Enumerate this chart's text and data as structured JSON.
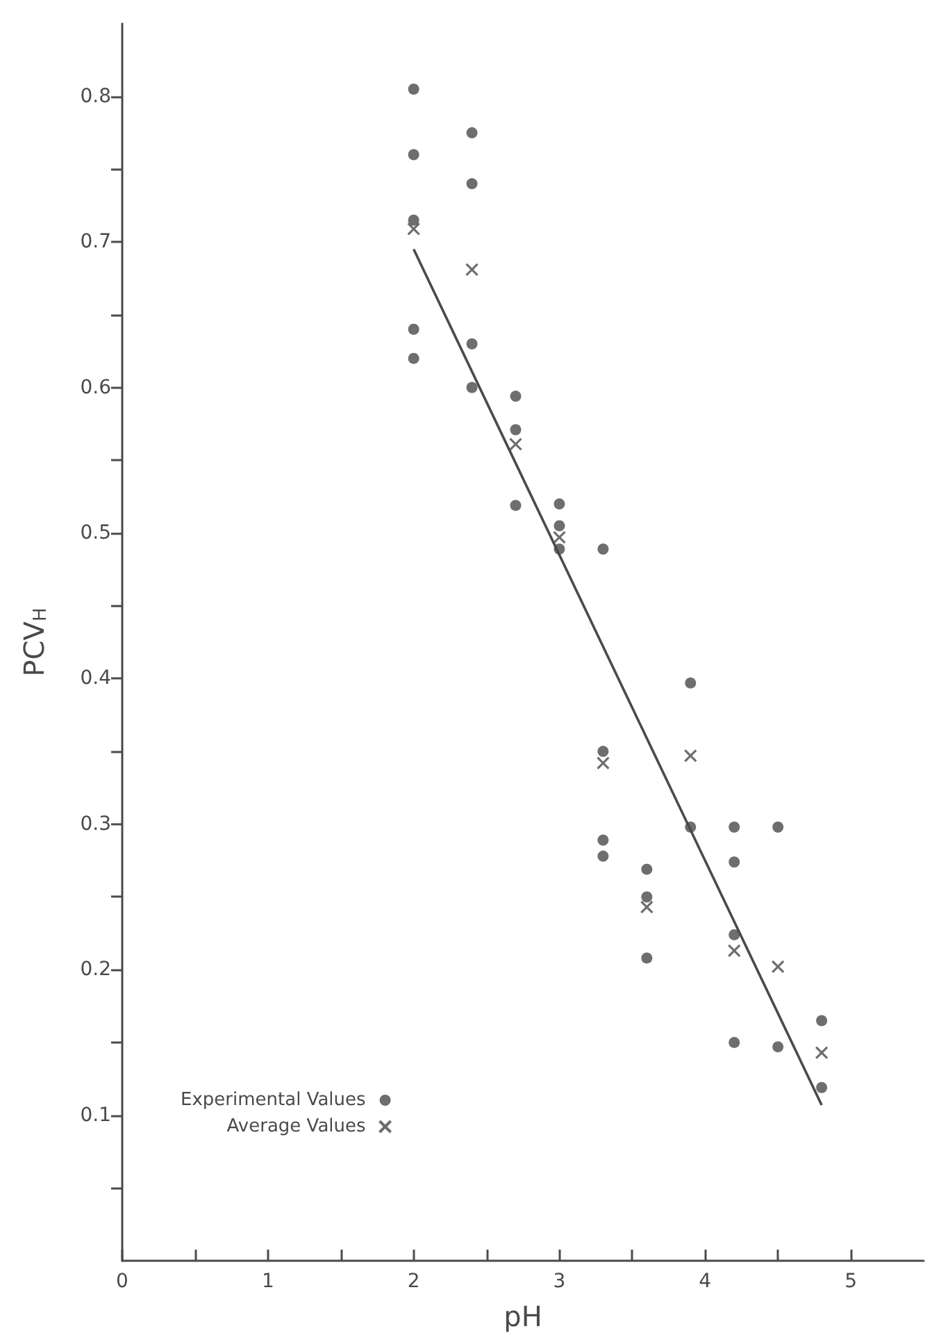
{
  "chart_data": {
    "type": "scatter",
    "xlabel": "pH",
    "ylabel": "PCV$_{H}$",
    "xlim": [
      0,
      5.5
    ],
    "ylim": [
      0,
      0.85
    ],
    "xticks": [
      0,
      {
        "value": 0.5,
        "label": null
      },
      1,
      {
        "value": 1.5,
        "label": null
      },
      2,
      {
        "value": 2.5,
        "label": null
      },
      3,
      {
        "value": 3.5,
        "label": null
      },
      4,
      {
        "value": 4.5,
        "label": null
      },
      5
    ],
    "yticks": [
      {
        "value": 0.05,
        "label": null
      },
      0.1,
      {
        "value": 0.15,
        "label": null
      },
      0.2,
      {
        "value": 0.25,
        "label": null
      },
      0.3,
      {
        "value": 0.35,
        "label": null
      },
      0.4,
      {
        "value": 0.45,
        "label": null
      },
      0.5,
      {
        "value": 0.55,
        "label": null
      },
      0.6,
      {
        "value": 0.65,
        "label": null
      },
      0.7,
      {
        "value": 0.75,
        "label": null
      },
      0.8
    ],
    "grid": false,
    "legend": "left",
    "series": [
      {
        "name": "Experimental Values",
        "marker": "circle",
        "color": "#4a4a4a",
        "x": [
          2.0,
          2.0,
          2.0,
          2.0,
          2.0,
          2.4,
          2.4,
          2.4,
          2.4,
          2.7,
          2.7,
          2.7,
          3.0,
          3.0,
          3.0,
          3.3,
          3.3,
          3.3,
          3.3,
          3.6,
          3.6,
          3.6,
          3.9,
          3.9,
          4.2,
          4.2,
          4.2,
          4.2,
          4.5,
          4.5,
          4.8,
          4.8
        ],
        "values": [
          0.805,
          0.76,
          0.715,
          0.64,
          0.62,
          0.775,
          0.74,
          0.63,
          0.6,
          0.594,
          0.571,
          0.519,
          0.52,
          0.505,
          0.489,
          0.489,
          0.35,
          0.289,
          0.278,
          0.269,
          0.25,
          0.208,
          0.397,
          0.298,
          0.298,
          0.274,
          0.224,
          0.15,
          0.298,
          0.147,
          0.165,
          0.119
        ]
      },
      {
        "name": "Average Values",
        "marker": "cross",
        "color": "#4a4a4a",
        "x": [
          2.0,
          2.4,
          2.7,
          3.0,
          3.3,
          3.6,
          3.9,
          4.2,
          4.5,
          4.8
        ],
        "values": [
          0.709,
          0.681,
          0.561,
          0.497,
          0.342,
          0.243,
          0.347,
          0.213,
          0.202,
          0.143
        ]
      },
      {
        "type": "line",
        "marker": "none",
        "line_style": "solid",
        "color": "#4a4a4a",
        "x": [
          2.0,
          4.8
        ],
        "values": [
          0.695,
          0.107
        ]
      }
    ]
  }
}
